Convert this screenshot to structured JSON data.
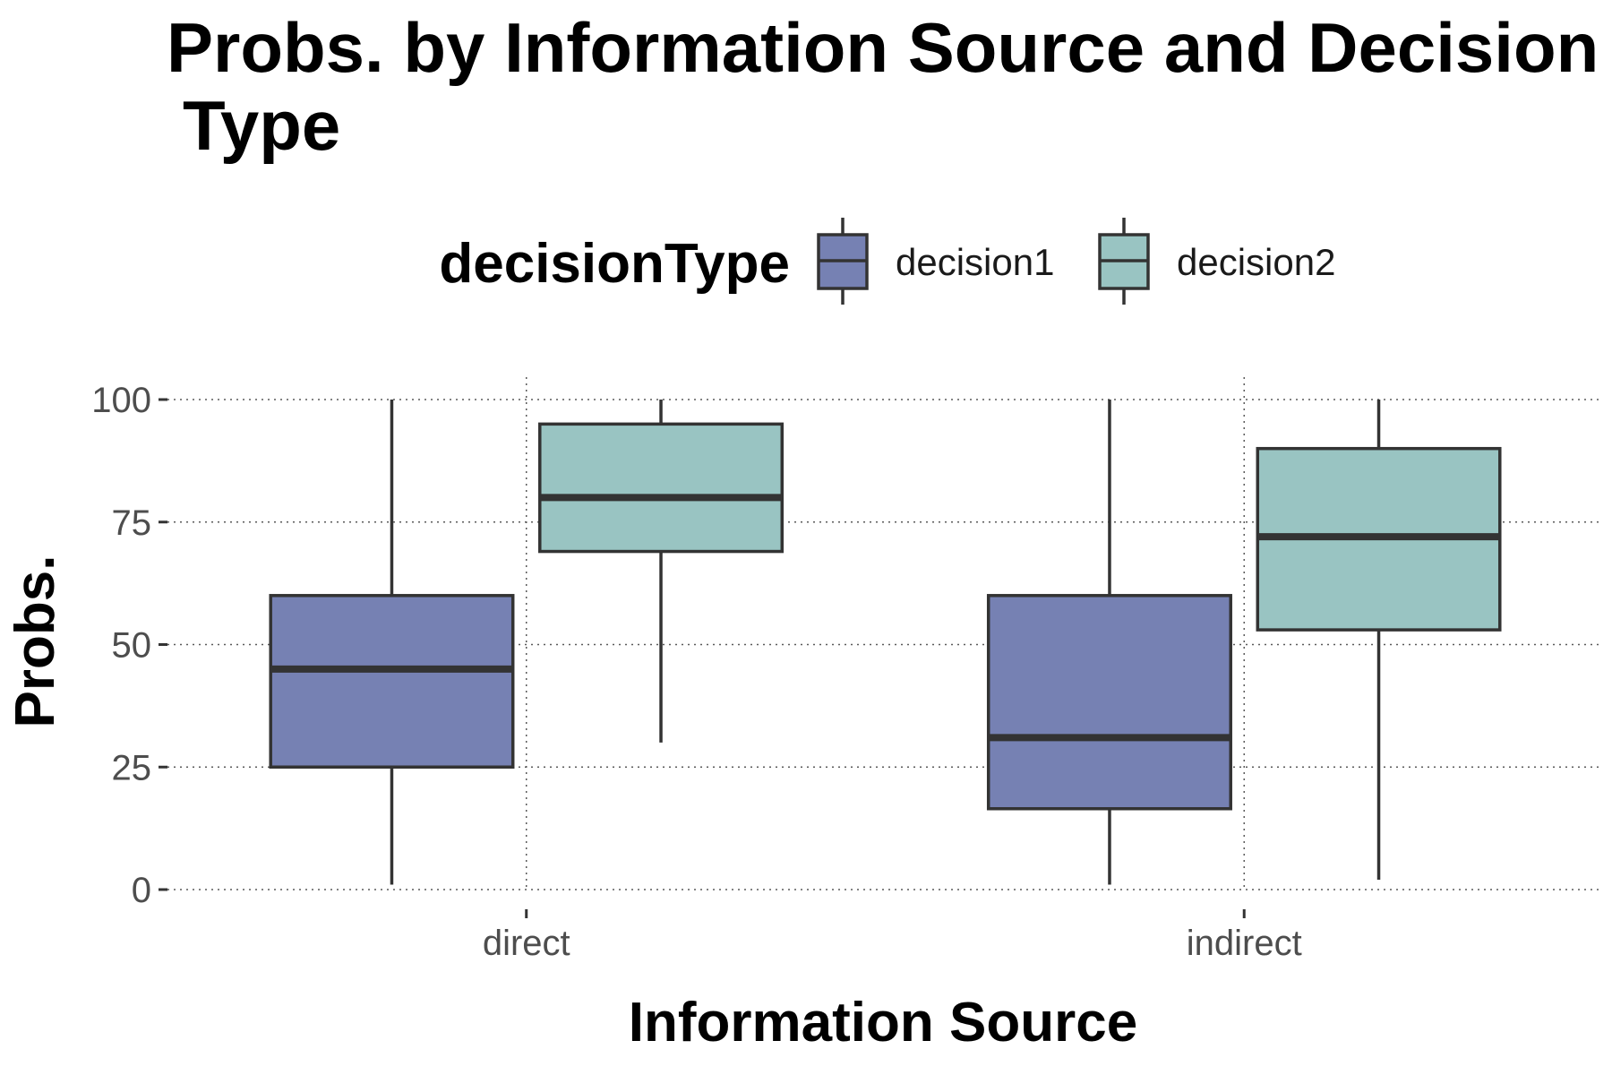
{
  "chart_data": {
    "type": "boxplot",
    "title_lines": [
      "Probs. by Information Source and Decision",
      "Type"
    ],
    "xlabel": "Information Source",
    "ylabel": "Probs.",
    "categories": [
      "direct",
      "indirect"
    ],
    "ylim": [
      0,
      100
    ],
    "yticks": [
      0,
      25,
      50,
      75,
      100
    ],
    "grid": true,
    "legend": {
      "title": "decisionType",
      "position": "top",
      "entries": [
        "decision1",
        "decision2"
      ]
    },
    "series": [
      {
        "name": "decision1",
        "color": "#7681b3",
        "boxes": [
          {
            "category": "direct",
            "whisker_low": 1,
            "q1": 25,
            "median": 45,
            "q3": 60,
            "whisker_high": 100
          },
          {
            "category": "indirect",
            "whisker_low": 1,
            "q1": 16.5,
            "median": 31,
            "q3": 60,
            "whisker_high": 100
          }
        ]
      },
      {
        "name": "decision2",
        "color": "#99c4c2",
        "boxes": [
          {
            "category": "direct",
            "whisker_low": 30,
            "q1": 69,
            "median": 80,
            "q3": 95,
            "whisker_high": 100
          },
          {
            "category": "indirect",
            "whisker_low": 2,
            "q1": 53,
            "median": 72,
            "q3": 90,
            "whisker_high": 100
          }
        ]
      }
    ],
    "outline_color": "#333333"
  }
}
